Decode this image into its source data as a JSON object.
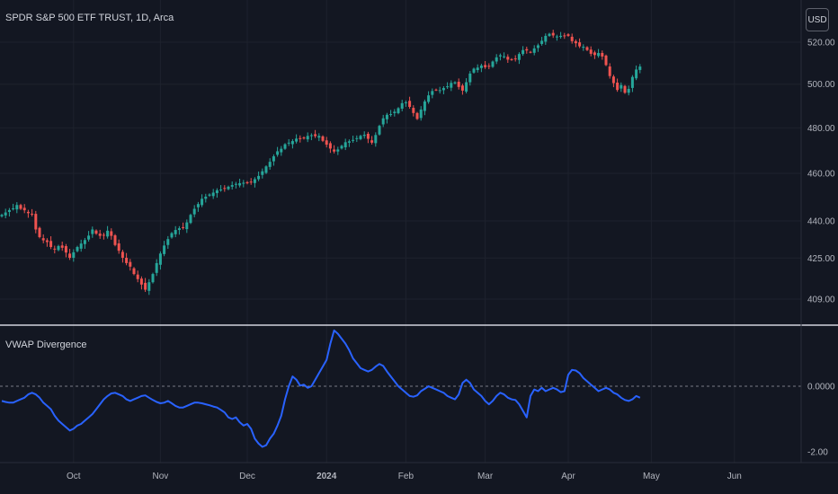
{
  "symbol_title": "SPDR S&P 500 ETF TRUST, 1D, Arca",
  "currency_button": "USD",
  "indicator_title": "VWAP Divergence",
  "colors": {
    "background": "#131722",
    "up": "#26a69a",
    "down": "#ef5350",
    "indicator_line": "#2962ff",
    "grid": "#1e222d",
    "axis_text": "#b2b5be",
    "separator": "#d1d4dc"
  },
  "chart_data": [
    {
      "type": "candlestick",
      "title": "SPDR S&P 500 ETF TRUST, 1D, Arca",
      "y_scale": "log",
      "y_ticks": [
        409,
        425,
        440,
        460,
        480,
        500,
        520
      ],
      "y_tick_labels": [
        "409.00",
        "425.00",
        "440.00",
        "460.00",
        "480.00",
        "500.00",
        "520.00"
      ],
      "close": [
        442.5,
        443.5,
        444.5,
        445.2,
        446.6,
        445.0,
        444.4,
        443.2,
        442.7,
        436.5,
        433.4,
        432.1,
        431.4,
        429.4,
        428.4,
        429.8,
        429.1,
        427.2,
        425.1,
        427.3,
        429.4,
        430.8,
        432.2,
        434.0,
        436.5,
        434.8,
        433.9,
        434.3,
        436.0,
        433.9,
        430.2,
        427.9,
        425.1,
        423.0,
        421.6,
        418.7,
        416.7,
        414.6,
        412.6,
        415.5,
        418.7,
        423.0,
        426.8,
        430.0,
        432.6,
        435.0,
        436.3,
        437.0,
        437.3,
        439.4,
        442.5,
        445.0,
        447.0,
        449.2,
        450.1,
        451.0,
        451.8,
        452.8,
        453.1,
        453.7,
        454.3,
        455.0,
        455.5,
        455.8,
        456.0,
        455.8,
        456.3,
        457.5,
        458.9,
        460.9,
        463.0,
        465.0,
        467.4,
        469.6,
        470.7,
        472.7,
        473.4,
        474.1,
        475.2,
        475.0,
        475.3,
        476.4,
        476.7,
        476.3,
        476.4,
        474.2,
        472.5,
        470.8,
        469.5,
        470.4,
        472.0,
        473.6,
        474.0,
        474.6,
        475.4,
        476.4,
        476.9,
        475.1,
        473.4,
        476.8,
        480.9,
        484.3,
        485.9,
        486.2,
        487.3,
        488.9,
        491.2,
        491.6,
        489.5,
        486.7,
        484.0,
        488.3,
        492.0,
        494.8,
        496.8,
        497.3,
        497.2,
        498.2,
        499.0,
        500.6,
        500.9,
        498.7,
        497.0,
        500.9,
        505.0,
        507.3,
        507.8,
        508.8,
        508.0,
        508.6,
        510.7,
        512.7,
        513.7,
        513.2,
        511.6,
        511.5,
        511.9,
        514.3,
        516.2,
        516.0,
        515.1,
        517.0,
        518.5,
        520.7,
        523.1,
        524.1,
        523.3,
        522.8,
        523.1,
        523.2,
        523.1,
        520.5,
        519.5,
        518.0,
        517.8,
        516.2,
        514.4,
        513.8,
        514.8,
        513.1,
        509.0,
        503.8,
        500.5,
        497.3,
        499.6,
        496.0,
        497.8,
        503.4,
        506.9,
        508.3
      ]
    },
    {
      "type": "line",
      "title": "VWAP Divergence",
      "y_ticks": [
        0,
        -2
      ],
      "y_tick_labels": [
        "0.0000",
        "-2.00"
      ],
      "zero_line": "dashed",
      "x_labels": [
        "Oct",
        "Nov",
        "Dec",
        "2024",
        "Feb",
        "Mar",
        "Apr",
        "May",
        "Jun"
      ],
      "values": [
        -0.45,
        -0.48,
        -0.5,
        -0.5,
        -0.45,
        -0.4,
        -0.35,
        -0.25,
        -0.2,
        -0.25,
        -0.35,
        -0.5,
        -0.6,
        -0.7,
        -0.9,
        -1.05,
        -1.15,
        -1.25,
        -1.35,
        -1.3,
        -1.2,
        -1.15,
        -1.05,
        -0.95,
        -0.85,
        -0.7,
        -0.55,
        -0.4,
        -0.3,
        -0.22,
        -0.2,
        -0.25,
        -0.3,
        -0.4,
        -0.45,
        -0.4,
        -0.35,
        -0.3,
        -0.28,
        -0.35,
        -0.42,
        -0.48,
        -0.52,
        -0.5,
        -0.45,
        -0.52,
        -0.6,
        -0.65,
        -0.65,
        -0.6,
        -0.55,
        -0.5,
        -0.5,
        -0.52,
        -0.55,
        -0.58,
        -0.62,
        -0.65,
        -0.72,
        -0.8,
        -0.95,
        -1.0,
        -0.95,
        -1.1,
        -1.2,
        -1.15,
        -1.3,
        -1.6,
        -1.75,
        -1.85,
        -1.8,
        -1.6,
        -1.45,
        -1.2,
        -0.9,
        -0.4,
        0.0,
        0.3,
        0.2,
        0.02,
        0.05,
        -0.05,
        0.0,
        0.2,
        0.4,
        0.6,
        0.8,
        1.3,
        1.7,
        1.6,
        1.45,
        1.3,
        1.1,
        0.85,
        0.7,
        0.55,
        0.5,
        0.45,
        0.5,
        0.6,
        0.68,
        0.62,
        0.45,
        0.3,
        0.15,
        0.0,
        -0.1,
        -0.2,
        -0.3,
        -0.32,
        -0.28,
        -0.15,
        -0.08,
        0.0,
        -0.05,
        -0.1,
        -0.15,
        -0.2,
        -0.3,
        -0.35,
        -0.4,
        -0.25,
        0.1,
        0.2,
        0.1,
        -0.1,
        -0.2,
        -0.3,
        -0.45,
        -0.55,
        -0.45,
        -0.3,
        -0.2,
        -0.25,
        -0.35,
        -0.4,
        -0.42,
        -0.55,
        -0.75,
        -0.95,
        -0.3,
        -0.1,
        -0.15,
        -0.05,
        -0.15,
        -0.1,
        -0.05,
        -0.1,
        -0.18,
        -0.15,
        0.35,
        0.5,
        0.48,
        0.4,
        0.25,
        0.15,
        0.05,
        -0.05,
        -0.15,
        -0.1,
        -0.05,
        -0.1,
        -0.2,
        -0.25,
        -0.35,
        -0.42,
        -0.45,
        -0.4,
        -0.3,
        -0.35
      ]
    }
  ]
}
